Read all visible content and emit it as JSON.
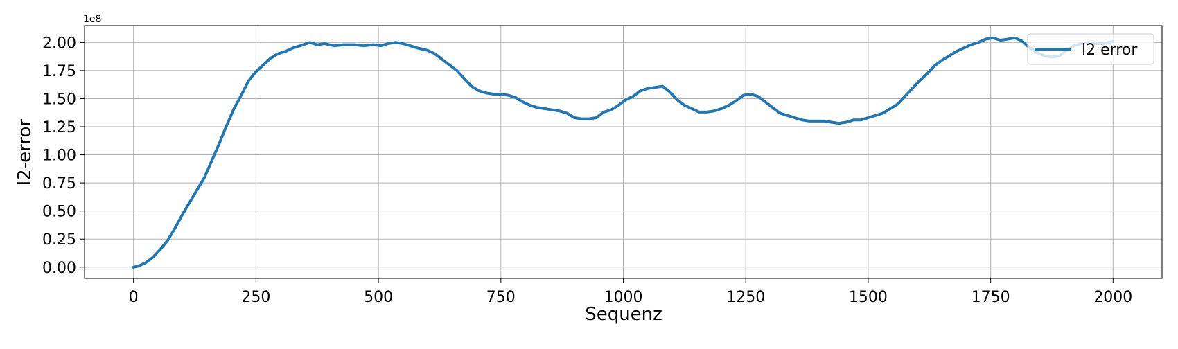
{
  "chart_data": {
    "type": "line",
    "title": "",
    "xlabel": "Sequenz",
    "ylabel": "l2-error",
    "y_offset_label": "1e8",
    "xlim": [
      -100,
      2100
    ],
    "ylim": [
      -0.1,
      2.15
    ],
    "xticks": [
      0,
      250,
      500,
      750,
      1000,
      1250,
      1500,
      1750,
      2000
    ],
    "xtick_labels": [
      "0",
      "250",
      "500",
      "750",
      "1000",
      "1250",
      "1500",
      "1750",
      "2000"
    ],
    "yticks": [
      0,
      0.25,
      0.5,
      0.75,
      1.0,
      1.25,
      1.5,
      1.75,
      2.0
    ],
    "ytick_labels": [
      "0.00",
      "0.25",
      "0.50",
      "0.75",
      "1.00",
      "1.25",
      "1.50",
      "1.75",
      "2.00"
    ],
    "grid": true,
    "legend_position": "top-right",
    "colors": {
      "series": "#1f77b4",
      "grid": "#b0b0b0",
      "axes": "#000000"
    },
    "series": [
      {
        "name": "l2 error",
        "x": [
          0,
          10,
          25,
          40,
          55,
          70,
          85,
          100,
          115,
          130,
          145,
          160,
          175,
          190,
          205,
          220,
          235,
          250,
          265,
          280,
          295,
          310,
          325,
          340,
          360,
          375,
          390,
          410,
          430,
          450,
          470,
          490,
          505,
          520,
          535,
          550,
          565,
          580,
          600,
          615,
          630,
          645,
          660,
          675,
          690,
          705,
          720,
          735,
          750,
          765,
          780,
          795,
          810,
          825,
          840,
          855,
          870,
          885,
          900,
          915,
          930,
          945,
          960,
          975,
          990,
          1005,
          1020,
          1035,
          1050,
          1065,
          1080,
          1095,
          1110,
          1125,
          1140,
          1155,
          1170,
          1185,
          1200,
          1215,
          1230,
          1245,
          1260,
          1275,
          1290,
          1305,
          1320,
          1335,
          1350,
          1365,
          1380,
          1395,
          1410,
          1425,
          1440,
          1455,
          1470,
          1485,
          1500,
          1515,
          1530,
          1545,
          1560,
          1575,
          1590,
          1605,
          1620,
          1635,
          1650,
          1665,
          1680,
          1695,
          1710,
          1725,
          1740,
          1755,
          1770,
          1785,
          1800,
          1815,
          1830,
          1845,
          1860,
          1875,
          1890,
          1905,
          1920,
          1935,
          1950,
          1965,
          1980,
          2000
        ],
        "values": [
          0.0,
          0.01,
          0.04,
          0.09,
          0.16,
          0.24,
          0.35,
          0.47,
          0.58,
          0.69,
          0.8,
          0.95,
          1.1,
          1.26,
          1.41,
          1.53,
          1.66,
          1.74,
          1.8,
          1.86,
          1.9,
          1.92,
          1.95,
          1.97,
          2.0,
          1.98,
          1.99,
          1.97,
          1.98,
          1.98,
          1.97,
          1.98,
          1.97,
          1.99,
          2.0,
          1.99,
          1.97,
          1.95,
          1.93,
          1.9,
          1.85,
          1.8,
          1.75,
          1.68,
          1.61,
          1.57,
          1.55,
          1.54,
          1.54,
          1.53,
          1.51,
          1.47,
          1.44,
          1.42,
          1.41,
          1.4,
          1.39,
          1.37,
          1.33,
          1.32,
          1.32,
          1.33,
          1.38,
          1.4,
          1.44,
          1.49,
          1.52,
          1.57,
          1.59,
          1.6,
          1.61,
          1.56,
          1.49,
          1.44,
          1.41,
          1.38,
          1.38,
          1.39,
          1.41,
          1.44,
          1.48,
          1.53,
          1.54,
          1.52,
          1.47,
          1.42,
          1.37,
          1.35,
          1.33,
          1.31,
          1.3,
          1.3,
          1.3,
          1.29,
          1.28,
          1.29,
          1.31,
          1.31,
          1.33,
          1.35,
          1.37,
          1.41,
          1.45,
          1.52,
          1.59,
          1.66,
          1.72,
          1.79,
          1.84,
          1.88,
          1.92,
          1.95,
          1.98,
          2.0,
          2.03,
          2.04,
          2.02,
          2.03,
          2.04,
          2.01,
          1.95,
          1.91,
          1.88,
          1.87,
          1.88,
          1.93,
          1.97,
          1.99,
          2.0,
          1.99,
          1.99,
          2.01
        ]
      }
    ]
  }
}
